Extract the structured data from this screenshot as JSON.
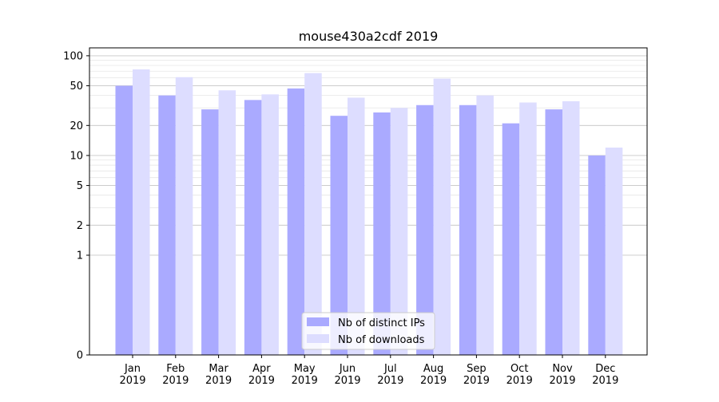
{
  "chart_data": {
    "type": "bar",
    "title": "mouse430a2cdf 2019",
    "xlabel": "",
    "ylabel": "",
    "y_scale": "symlog",
    "ylim": [
      0,
      120
    ],
    "yticks": [
      0,
      1,
      2,
      5,
      10,
      20,
      50,
      100
    ],
    "ytick_labels": [
      "0",
      "1",
      "2",
      "5",
      "10",
      "20",
      "50",
      "100"
    ],
    "categories": [
      "Jan\n2019",
      "Feb\n2019",
      "Mar\n2019",
      "Apr\n2019",
      "May\n2019",
      "Jun\n2019",
      "Jul\n2019",
      "Aug\n2019",
      "Sep\n2019",
      "Oct\n2019",
      "Nov\n2019",
      "Dec\n2019"
    ],
    "series": [
      {
        "name": "Nb of distinct IPs",
        "color": "#aaaaff",
        "values": [
          50,
          40,
          29,
          36,
          47,
          25,
          27,
          32,
          32,
          21,
          29,
          10
        ]
      },
      {
        "name": "Nb of downloads",
        "color": "#ddddff",
        "values": [
          73,
          61,
          45,
          41,
          67,
          38,
          30,
          59,
          40,
          34,
          35,
          12
        ]
      }
    ],
    "grid": true,
    "legend_position": "bottom-center"
  }
}
